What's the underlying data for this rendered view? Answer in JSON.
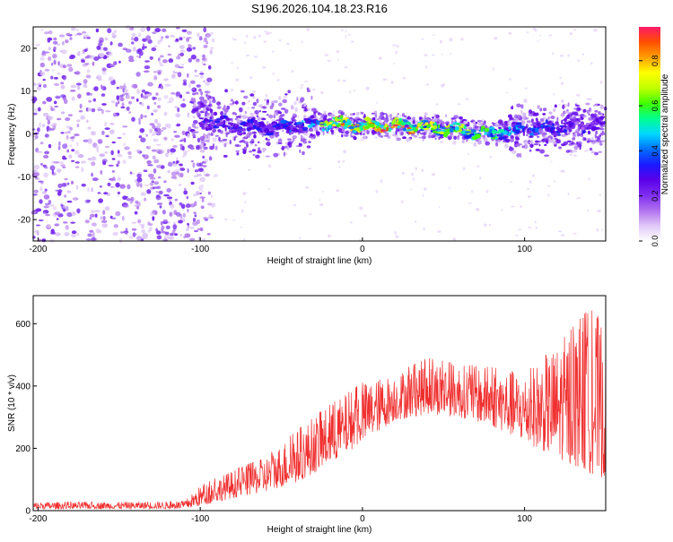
{
  "title": "S196.2026.104.18.23.R16",
  "chart_data": [
    {
      "type": "heatmap",
      "name": "spectrogram",
      "xlabel": "Height of straight line (km)",
      "ylabel": "Frequency (Hz)",
      "xlim": [
        -203,
        150
      ],
      "ylim": [
        -25,
        25
      ],
      "xticks": [
        -200,
        -100,
        0,
        100
      ],
      "yticks": [
        -20,
        -10,
        0,
        10,
        20
      ],
      "colorbar": {
        "label": "Normalized spectral amplitude",
        "range": [
          0,
          0.95
        ],
        "ticks": [
          0.0,
          0.2,
          0.4,
          0.6,
          0.8
        ],
        "colors": [
          "#ffffff",
          "#e0c8f8",
          "#b070ee",
          "#7f2ef2",
          "#5a00e8",
          "#1a1aff",
          "#0070ff",
          "#00d8ff",
          "#00ff90",
          "#40ff00",
          "#c0ff00",
          "#ffff00",
          "#ffa000",
          "#ff5000",
          "#ff1a6a"
        ]
      },
      "ridge": {
        "x": [
          -100,
          -80,
          -60,
          -40,
          -20,
          0,
          20,
          40,
          60,
          80,
          100,
          120,
          140,
          150
        ],
        "y": [
          3,
          2,
          1.5,
          2,
          2.5,
          2,
          2,
          1.5,
          1,
          0,
          1,
          1.5,
          2,
          2
        ],
        "peak_amplitude": [
          0.3,
          0.35,
          0.35,
          0.4,
          0.8,
          0.9,
          0.9,
          0.75,
          0.7,
          0.6,
          0.4,
          0.35,
          0.3,
          0.3
        ]
      },
      "noise_region": {
        "x_range": [
          -203,
          -100
        ],
        "freq_range": [
          -25,
          25
        ],
        "typical_amplitude": 0.05
      }
    },
    {
      "type": "line",
      "name": "snr",
      "xlabel": "Height of straight line (km)",
      "ylabel": "SNR (10 * v/v)",
      "xlim": [
        -203,
        150
      ],
      "ylim": [
        0,
        690
      ],
      "xticks": [
        -200,
        -100,
        0,
        100
      ],
      "yticks": [
        0,
        200,
        400,
        600
      ],
      "color": "#f03030",
      "envelope": {
        "x": [
          -203,
          -150,
          -110,
          -100,
          -80,
          -60,
          -40,
          -20,
          0,
          20,
          40,
          60,
          80,
          100,
          120,
          140,
          150
        ],
        "lo": [
          5,
          6,
          6,
          15,
          40,
          60,
          90,
          150,
          220,
          290,
          310,
          300,
          270,
          220,
          170,
          120,
          100
        ],
        "hi": [
          28,
          28,
          30,
          80,
          130,
          170,
          260,
          340,
          410,
          440,
          490,
          470,
          460,
          440,
          530,
          650,
          600
        ]
      }
    }
  ]
}
